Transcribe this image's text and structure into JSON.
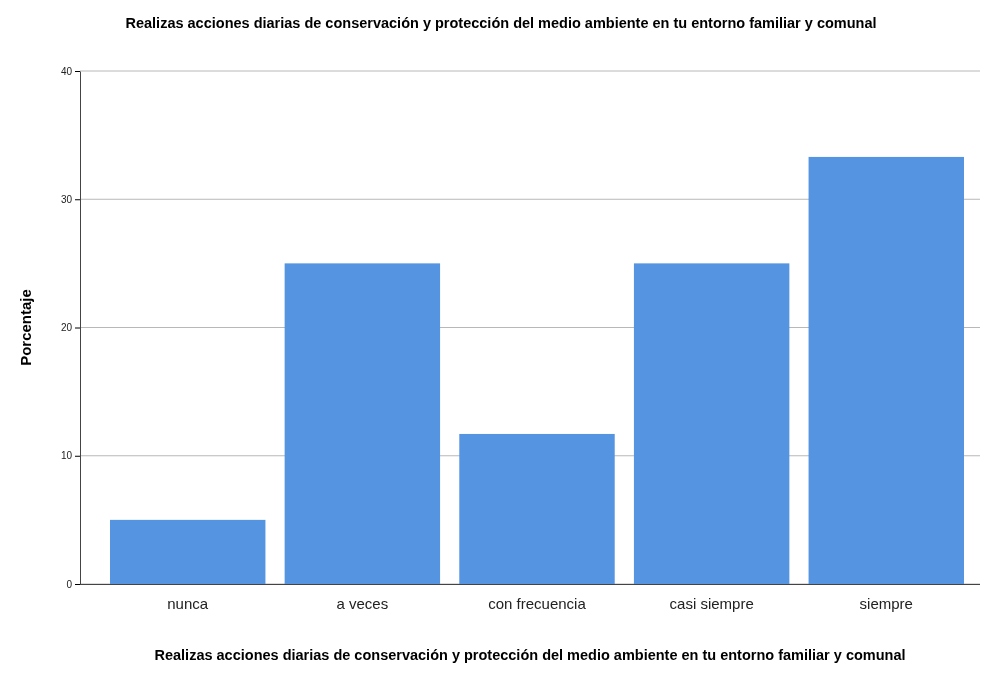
{
  "chart_data": {
    "type": "bar",
    "title": "Realizas acciones diarias de conservación y protección del medio ambiente en tu entorno familiar y comunal",
    "xlabel": "Realizas acciones diarias de conservación y protección del medio ambiente en tu entorno familiar y comunal",
    "ylabel": "Porcentaje",
    "categories": [
      "nunca",
      "a veces",
      "con frecuencia",
      "casi siempre",
      "siempre"
    ],
    "values": [
      5,
      25,
      11.7,
      25,
      33.3
    ],
    "color": "#5594e0",
    "ylim": [
      0,
      40
    ],
    "yticks": [
      0,
      10,
      20,
      30,
      40
    ],
    "grid": "y"
  }
}
